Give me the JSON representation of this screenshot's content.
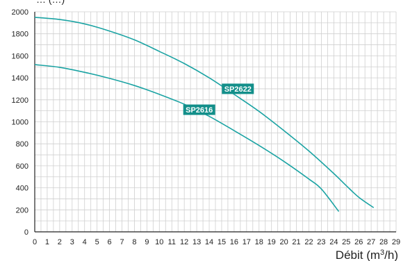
{
  "chart_data": {
    "type": "line",
    "title": "",
    "top_label_fragment": "… (…)",
    "xlabel": "Débit (m",
    "xlabel_sup": "3",
    "xlabel_end": "/h)",
    "ylabel": "",
    "xlim": [
      0,
      29
    ],
    "ylim": [
      0,
      2000
    ],
    "x_ticks": [
      "0",
      "1",
      "2",
      "3",
      "4",
      "5",
      "6",
      "7",
      "8",
      "9",
      "10",
      "11",
      "12",
      "13",
      "14",
      "15",
      "16",
      "17",
      "18",
      "19",
      "20",
      "21",
      "22",
      "23",
      "24",
      "25",
      "26",
      "27",
      "28",
      "29"
    ],
    "y_ticks": [
      "0",
      "200",
      "400",
      "600",
      "800",
      "1000",
      "1200",
      "1400",
      "1600",
      "1800",
      "2000"
    ],
    "grid": true,
    "series": [
      {
        "name": "SP2622",
        "x": [
          0,
          2,
          4,
          6,
          8,
          10,
          12,
          14,
          16,
          18,
          20,
          22,
          24,
          25,
          26,
          27.2
        ],
        "y": [
          1950,
          1930,
          1890,
          1825,
          1745,
          1640,
          1530,
          1400,
          1250,
          1095,
          920,
          735,
          530,
          420,
          315,
          220
        ]
      },
      {
        "name": "SP2616",
        "x": [
          0,
          2,
          4,
          6,
          8,
          10,
          12,
          14,
          16,
          18,
          20,
          22,
          23,
          24.4
        ],
        "y": [
          1520,
          1495,
          1450,
          1395,
          1330,
          1250,
          1160,
          1050,
          920,
          785,
          640,
          480,
          390,
          185
        ]
      }
    ],
    "line_color": "#1aa3a3",
    "label_bg_color": "#138f8a",
    "grid_color": "#cfcfcf"
  }
}
